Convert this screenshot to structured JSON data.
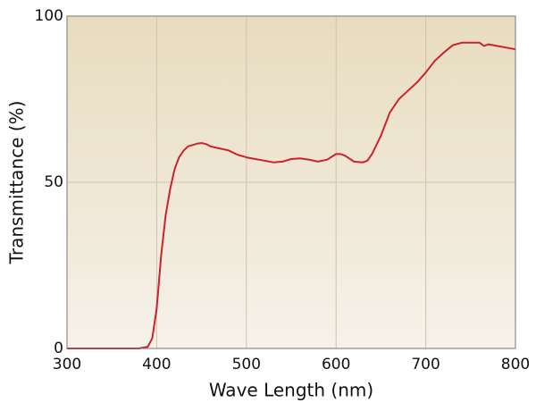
{
  "chart_data": {
    "type": "line",
    "x_label": "Wave Length (nm)",
    "y_label": "Transmittance (%)",
    "xlim": [
      300,
      800
    ],
    "xticks": [
      300,
      400,
      500,
      600,
      700,
      800
    ],
    "ylim": [
      0,
      100
    ],
    "yticks": [
      0,
      50,
      100
    ],
    "grid": true,
    "x": [
      300,
      380,
      390,
      395,
      400,
      405,
      410,
      415,
      420,
      425,
      430,
      435,
      440,
      445,
      450,
      455,
      460,
      470,
      480,
      490,
      500,
      510,
      520,
      530,
      540,
      550,
      560,
      570,
      580,
      590,
      600,
      605,
      610,
      620,
      630,
      635,
      640,
      650,
      660,
      670,
      680,
      690,
      700,
      710,
      720,
      730,
      740,
      750,
      760,
      765,
      770,
      780,
      790,
      800
    ],
    "series": [
      {
        "name": "Transmittance",
        "color": "#cc2229",
        "values": [
          0,
          0,
          0.5,
          3,
          12,
          28,
          40,
          48,
          54,
          57.5,
          59.5,
          60.8,
          61.2,
          61.6,
          61.8,
          61.5,
          60.8,
          60.2,
          59.6,
          58.3,
          57.5,
          57,
          56.5,
          56,
          56.2,
          57,
          57.2,
          56.8,
          56.2,
          56.8,
          58.5,
          58.5,
          58,
          56.2,
          56,
          56.5,
          58.5,
          64,
          71,
          75,
          77.5,
          80,
          83,
          86.5,
          89,
          91.2,
          92,
          92,
          92,
          91,
          91.5,
          91,
          90.5,
          90
        ]
      }
    ]
  }
}
